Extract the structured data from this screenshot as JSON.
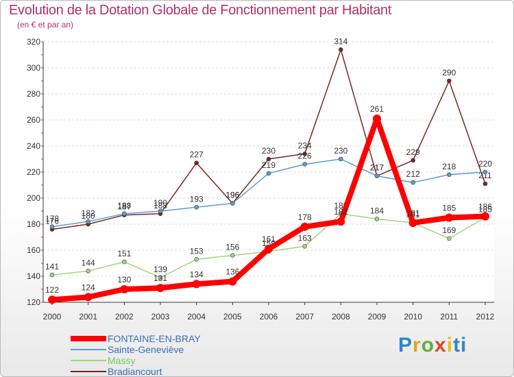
{
  "title": "Evolution de la Dotation Globale de Fonctionnement par Habitant",
  "subtitle": "(en € et par an)",
  "brand": "Proxiti",
  "chart_data": {
    "type": "line",
    "title": "Evolution de la Dotation Globale de Fonctionnement par Habitant",
    "ylabel": "(en € et par an)",
    "xlabel": "",
    "ylim": [
      120,
      320
    ],
    "yticks": [
      120,
      140,
      160,
      180,
      200,
      220,
      240,
      260,
      280,
      300,
      320
    ],
    "categories": [
      "2000",
      "2001",
      "2002",
      "2003",
      "2004",
      "2005",
      "2006",
      "2007",
      "2008",
      "2009",
      "2010",
      "2011",
      "2012"
    ],
    "series": [
      {
        "name": "Bradiancourt",
        "color": "#7a2424",
        "values": [
          176,
          180,
          187,
          188,
          227,
          196,
          230,
          234,
          314,
          217,
          229,
          290,
          211
        ]
      },
      {
        "name": "Massy",
        "color": "#9fd67a",
        "values": [
          141,
          144,
          151,
          139,
          153,
          156,
          159,
          163,
          188,
          184,
          181,
          169,
          185
        ]
      },
      {
        "name": "Sainte-Geneviève",
        "color": "#5a9bd5",
        "values": [
          178,
          182,
          188,
          190,
          193,
          196,
          219,
          226,
          230,
          217,
          212,
          218,
          220
        ]
      },
      {
        "name": "FONTAINE-EN-BRAY",
        "color": "#ff0000",
        "values": [
          122,
          124,
          130,
          131,
          134,
          136,
          161,
          178,
          182,
          261,
          181,
          185,
          186
        ]
      }
    ],
    "legend_order": [
      "FONTAINE-EN-BRAY",
      "Sainte-Geneviève",
      "Massy",
      "Bradiancourt"
    ],
    "legend_position": "bottom-left"
  }
}
